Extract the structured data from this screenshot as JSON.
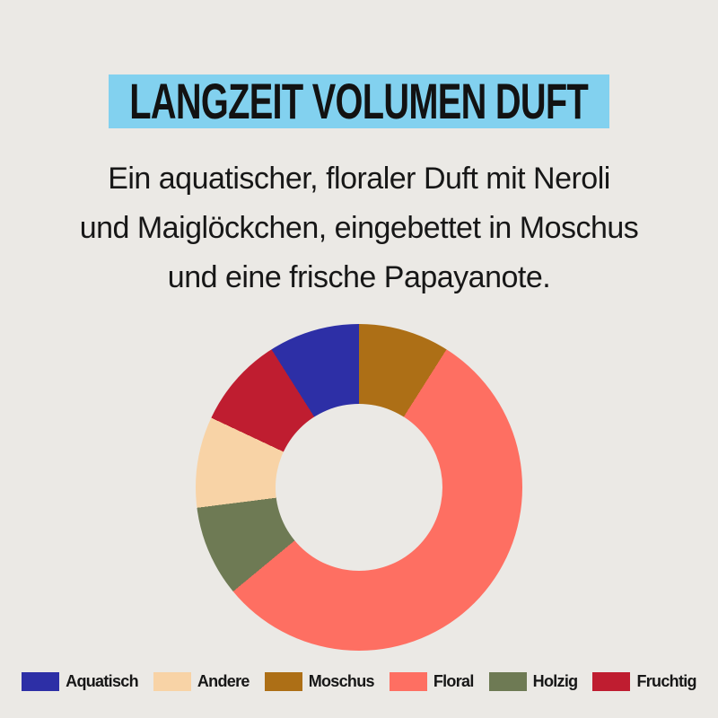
{
  "page": {
    "background_color": "#EBE9E5",
    "text_color": "#171717"
  },
  "header": {
    "title": "LANGZEIT VOLUMEN DUFT",
    "highlight_color": "#82D1EF"
  },
  "description": {
    "full_text": "Ein aquatischer, floraler Duft mit Neroli und Maiglöckchen, eingebettet in Moschus und eine frische Papayanote.",
    "lines": [
      "Ein aquatischer, floraler Duft mit Neroli",
      "und Maiglöckchen, eingebettet in Moschus",
      "und eine frische Papayanote."
    ]
  },
  "chart_data": {
    "type": "pie",
    "variant": "donut",
    "unit": "percent",
    "start_angle_deg": 0,
    "direction": "clockwise",
    "inner_radius_ratio": 0.51,
    "grid": false,
    "segments": [
      {
        "label": "Moschus",
        "value": 9,
        "color": "#AD6F16"
      },
      {
        "label": "Floral",
        "value": 55,
        "color": "#FE6F62"
      },
      {
        "label": "Holzig",
        "value": 9,
        "color": "#6E7A54"
      },
      {
        "label": "Andere",
        "value": 9,
        "color": "#F8D3A6"
      },
      {
        "label": "Fruchtig",
        "value": 9,
        "color": "#BF1D30"
      },
      {
        "label": "Aquatisch",
        "value": 9,
        "color": "#2D2FA6"
      }
    ],
    "legend_position": "bottom",
    "legend": [
      {
        "label": "Aquatisch",
        "color": "#2D2FA6"
      },
      {
        "label": "Andere",
        "color": "#F8D3A6"
      },
      {
        "label": "Moschus",
        "color": "#AD6F16"
      },
      {
        "label": "Floral",
        "color": "#FE6F62"
      },
      {
        "label": "Holzig",
        "color": "#6E7A54"
      },
      {
        "label": "Fruchtig",
        "color": "#BF1D30"
      }
    ]
  }
}
